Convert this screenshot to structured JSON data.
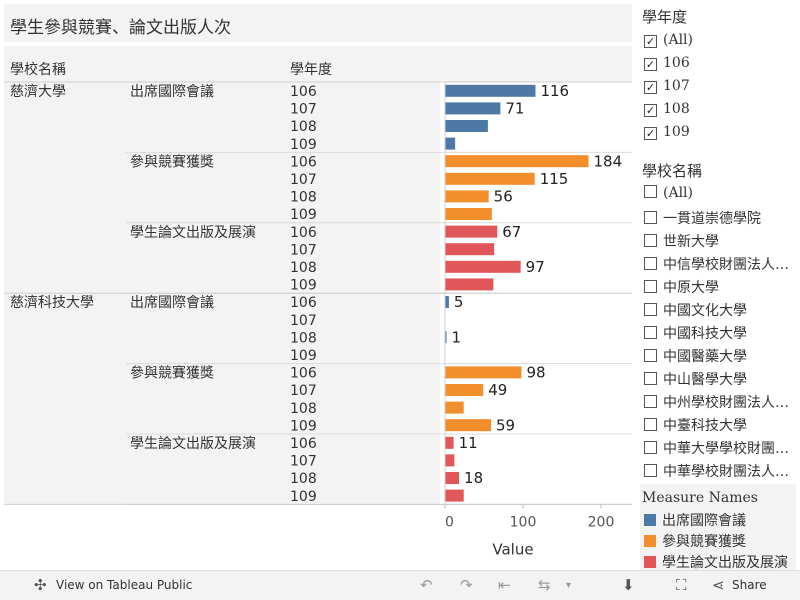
{
  "title": "學生參與競賽、論文出版人次",
  "header": {
    "school_col": "學校名稱",
    "year_col": "學年度"
  },
  "chart_data": {
    "type": "bar",
    "orientation": "horizontal",
    "xlabel": "Value",
    "xlim": [
      0,
      200
    ],
    "x_ticks": [
      0,
      100,
      200
    ],
    "measures": [
      {
        "name": "出席國際會議",
        "color": "#4e79a7"
      },
      {
        "name": "參與競賽獲獎",
        "color": "#f28e2b"
      },
      {
        "name": "學生論文出版及展演",
        "color": "#e15759"
      }
    ],
    "schools": [
      {
        "name": "慈濟大學",
        "groups": [
          {
            "measure": 0,
            "rows": [
              {
                "year": "106",
                "value": 116,
                "label": "116"
              },
              {
                "year": "107",
                "value": 71,
                "label": "71"
              },
              {
                "year": "108",
                "value": 55,
                "label": ""
              },
              {
                "year": "109",
                "value": 13,
                "label": ""
              }
            ]
          },
          {
            "measure": 1,
            "rows": [
              {
                "year": "106",
                "value": 184,
                "label": "184"
              },
              {
                "year": "107",
                "value": 115,
                "label": "115"
              },
              {
                "year": "108",
                "value": 56,
                "label": "56"
              },
              {
                "year": "109",
                "value": 60,
                "label": ""
              }
            ]
          },
          {
            "measure": 2,
            "rows": [
              {
                "year": "106",
                "value": 67,
                "label": "67"
              },
              {
                "year": "107",
                "value": 63,
                "label": ""
              },
              {
                "year": "108",
                "value": 97,
                "label": "97"
              },
              {
                "year": "109",
                "value": 62,
                "label": ""
              }
            ]
          }
        ]
      },
      {
        "name": "慈濟科技大學",
        "groups": [
          {
            "measure": 0,
            "rows": [
              {
                "year": "106",
                "value": 5,
                "label": "5"
              },
              {
                "year": "107",
                "value": 0,
                "label": ""
              },
              {
                "year": "108",
                "value": 1,
                "label": "1"
              },
              {
                "year": "109",
                "value": 0,
                "label": ""
              }
            ]
          },
          {
            "measure": 1,
            "rows": [
              {
                "year": "106",
                "value": 98,
                "label": "98"
              },
              {
                "year": "107",
                "value": 49,
                "label": "49"
              },
              {
                "year": "108",
                "value": 24,
                "label": ""
              },
              {
                "year": "109",
                "value": 59,
                "label": "59"
              }
            ]
          },
          {
            "measure": 2,
            "rows": [
              {
                "year": "106",
                "value": 11,
                "label": "11"
              },
              {
                "year": "107",
                "value": 12,
                "label": ""
              },
              {
                "year": "108",
                "value": 18,
                "label": "18"
              },
              {
                "year": "109",
                "value": 24,
                "label": ""
              }
            ]
          }
        ]
      }
    ]
  },
  "filters": {
    "year": {
      "title": "學年度",
      "items": [
        {
          "label": "(All)",
          "checked": true
        },
        {
          "label": "106",
          "checked": true
        },
        {
          "label": "107",
          "checked": true
        },
        {
          "label": "108",
          "checked": true
        },
        {
          "label": "109",
          "checked": true
        }
      ]
    },
    "school": {
      "title": "學校名稱",
      "items": [
        {
          "label": "(All)"
        },
        {
          "label": "一貫道崇德學院"
        },
        {
          "label": "世新大學"
        },
        {
          "label": "中信學校財團法人中信金融管理學院"
        },
        {
          "label": "中原大學"
        },
        {
          "label": "中國文化大學"
        },
        {
          "label": "中國科技大學"
        },
        {
          "label": "中國醫藥大學"
        },
        {
          "label": "中山醫學大學"
        },
        {
          "label": "中州學校財團法人中州科技大學"
        },
        {
          "label": "中臺科技大學"
        },
        {
          "label": "中華大學學校財團法人中華大學"
        },
        {
          "label": "中華學校財團法人中華科技大學"
        }
      ]
    }
  },
  "legend": {
    "title": "Measure Names",
    "items": [
      {
        "label": "出席國際會議",
        "color": "#4e79a7"
      },
      {
        "label": "參與競賽獲獎",
        "color": "#f28e2b"
      },
      {
        "label": "學生論文出版及展演",
        "color": "#e15759"
      }
    ]
  },
  "footer": {
    "view_label": "View on Tableau Public",
    "share_label": "Share"
  }
}
